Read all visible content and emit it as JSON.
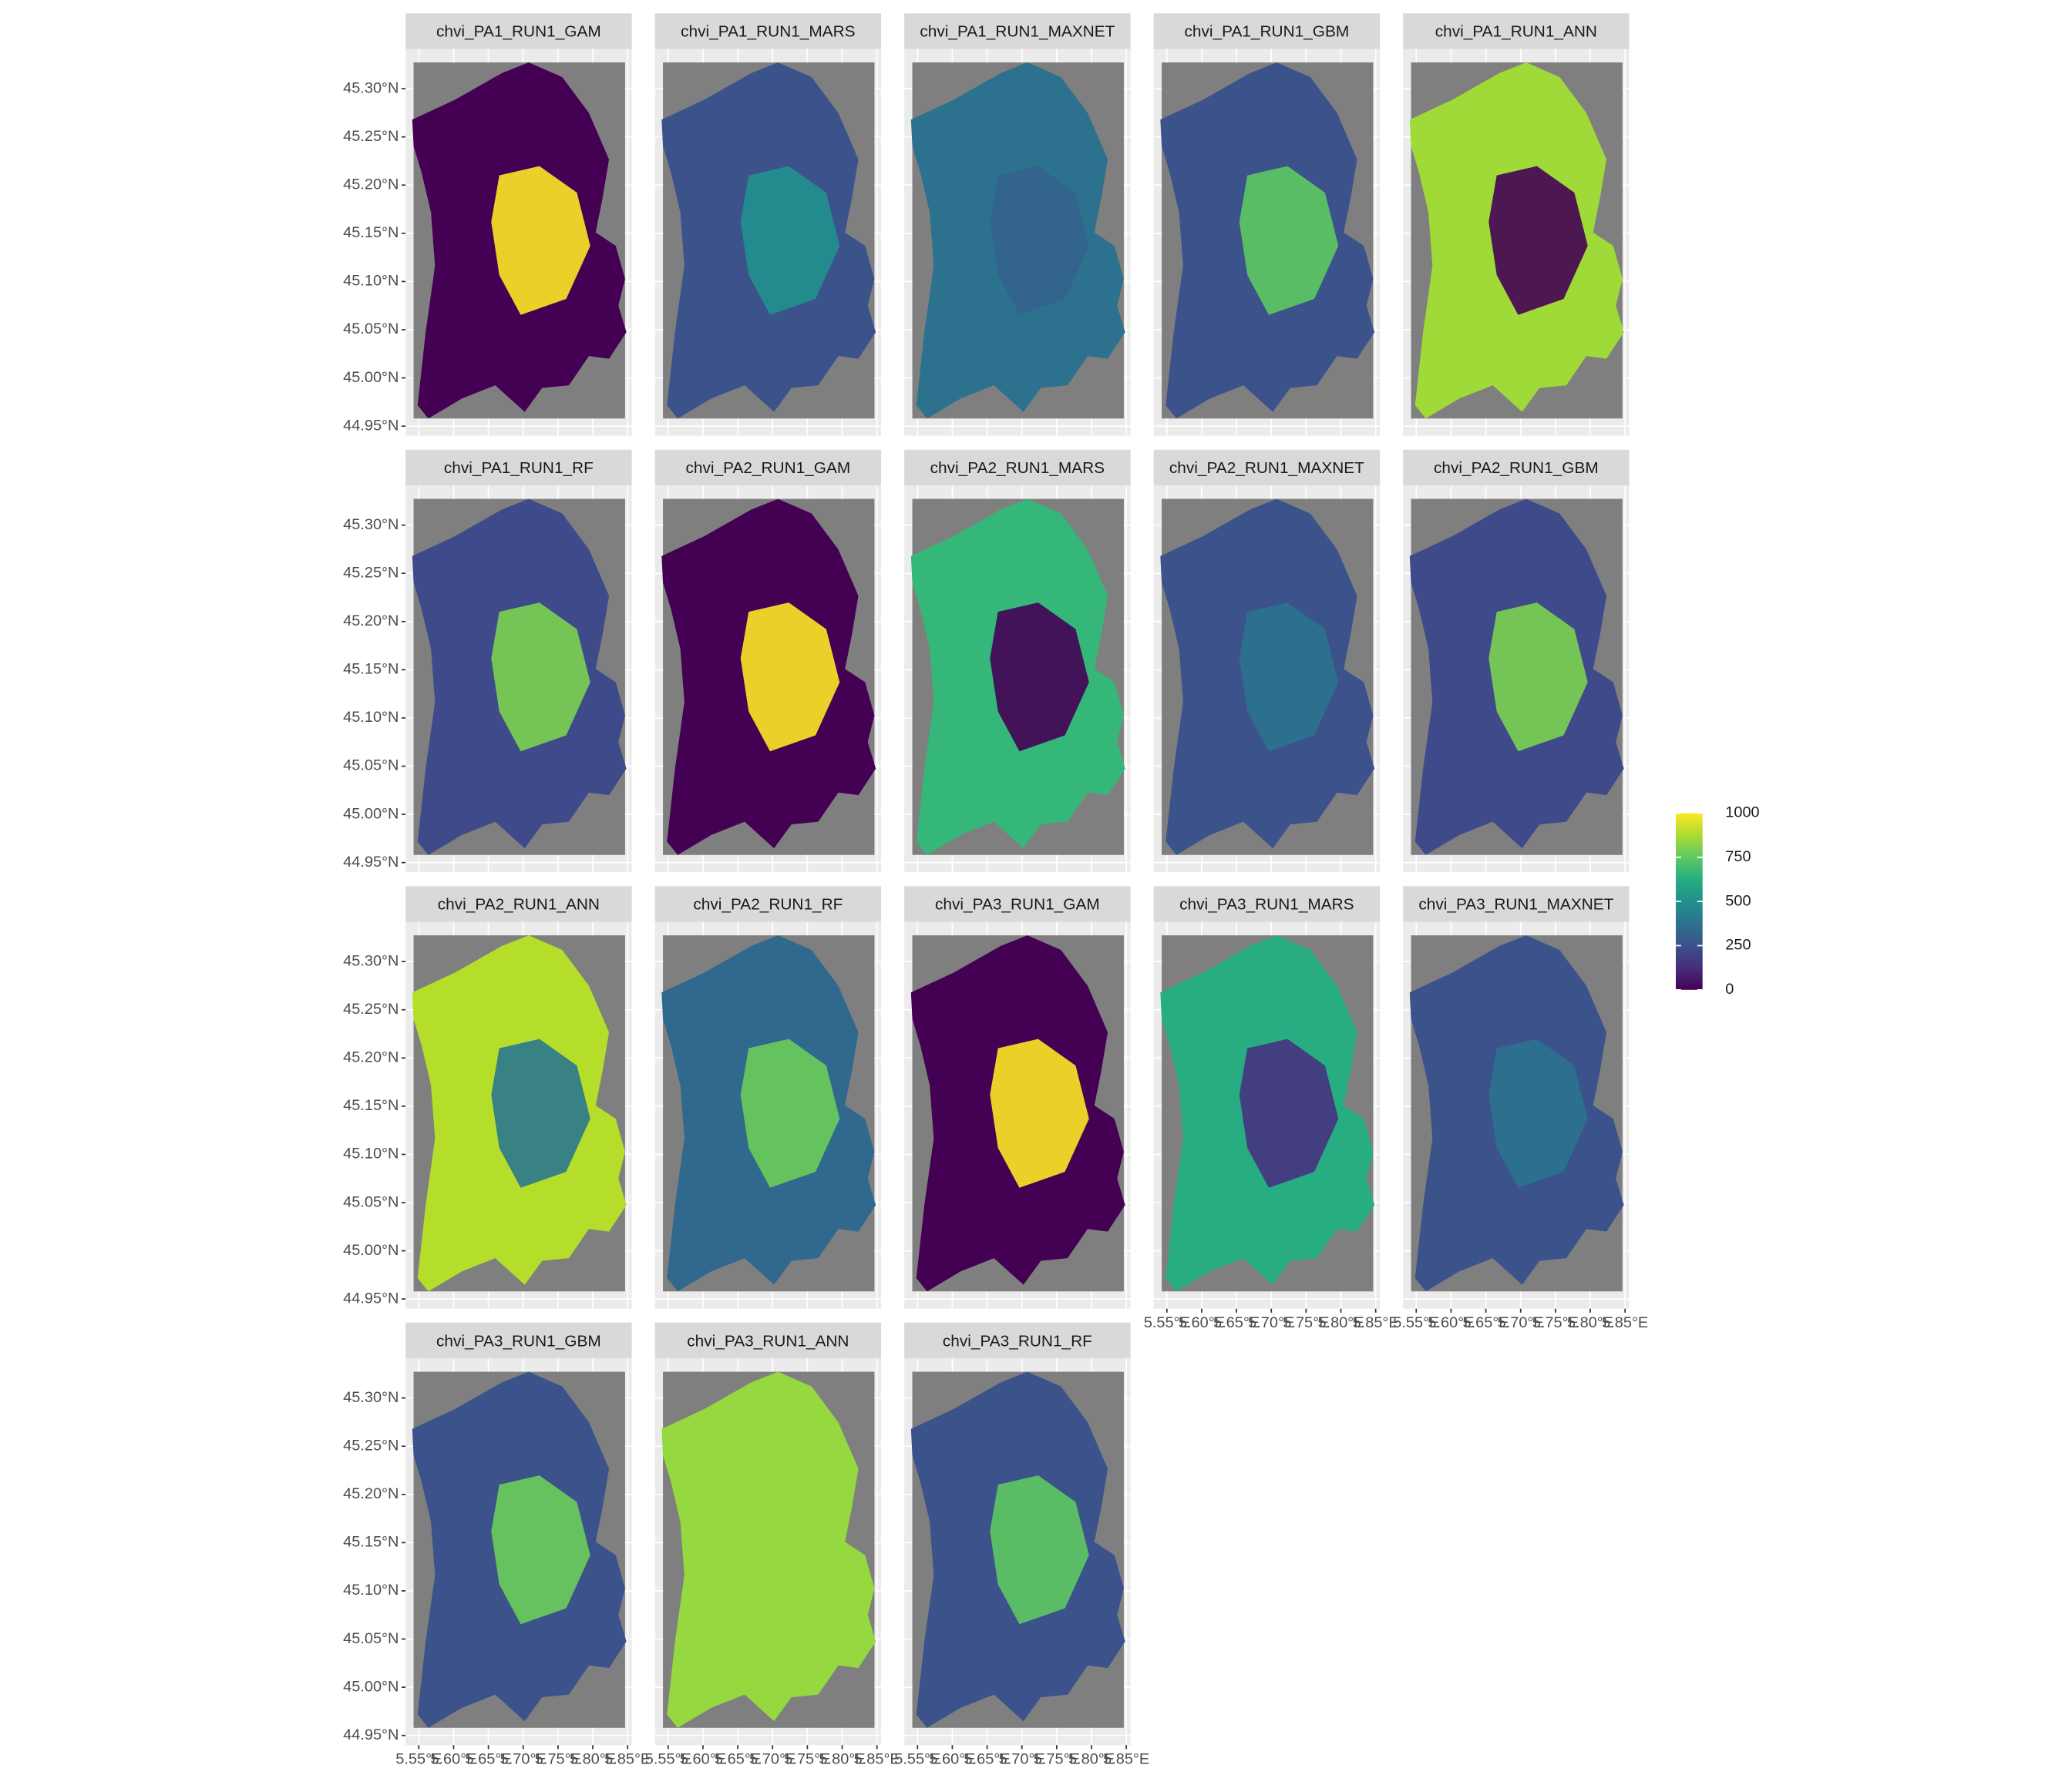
{
  "chart_data": {
    "type": "facet-raster-map",
    "panels": [
      {
        "title": "chvi_PA1_RUN1_GAM",
        "color": "#440154",
        "accent": "#fde725"
      },
      {
        "title": "chvi_PA1_RUN1_MARS",
        "color": "#3b528b",
        "accent": "#21908d"
      },
      {
        "title": "chvi_PA1_RUN1_MAXNET",
        "color": "#2c728e",
        "accent": "#33638d"
      },
      {
        "title": "chvi_PA1_RUN1_GBM",
        "color": "#3b528b",
        "accent": "#5ec962"
      },
      {
        "title": "chvi_PA1_RUN1_ANN",
        "color": "#a0da39",
        "accent": "#440154"
      },
      {
        "title": "chvi_PA1_RUN1_RF",
        "color": "#3e4a89",
        "accent": "#7ad151"
      },
      {
        "title": "chvi_PA2_RUN1_GAM",
        "color": "#440154",
        "accent": "#fde725"
      },
      {
        "title": "chvi_PA2_RUN1_MARS",
        "color": "#35b779",
        "accent": "#440154"
      },
      {
        "title": "chvi_PA2_RUN1_MAXNET",
        "color": "#3b528b",
        "accent": "#2c728e"
      },
      {
        "title": "chvi_PA2_RUN1_GBM",
        "color": "#3e4a89",
        "accent": "#7ad151"
      },
      {
        "title": "chvi_PA2_RUN1_ANN",
        "color": "#b5de2b",
        "accent": "#2a788e"
      },
      {
        "title": "chvi_PA2_RUN1_RF",
        "color": "#31688e",
        "accent": "#6ccd5a"
      },
      {
        "title": "chvi_PA3_RUN1_GAM",
        "color": "#440154",
        "accent": "#fde725"
      },
      {
        "title": "chvi_PA3_RUN1_MARS",
        "color": "#27ad81",
        "accent": "#46327e"
      },
      {
        "title": "chvi_PA3_RUN1_MAXNET",
        "color": "#3b528b",
        "accent": "#2c728e"
      },
      {
        "title": "chvi_PA3_RUN1_GBM",
        "color": "#3b528b",
        "accent": "#6ccd5a"
      },
      {
        "title": "chvi_PA3_RUN1_ANN",
        "color": "#95d840",
        "accent": "#95d840"
      },
      {
        "title": "chvi_PA3_RUN1_RF",
        "color": "#3b528b",
        "accent": "#5ec962"
      }
    ],
    "xlim": [
      5.531,
      5.856
    ],
    "ylim": [
      44.94,
      45.341
    ],
    "xticks": [
      {
        "value": 5.55,
        "label": "5.55°E"
      },
      {
        "value": 5.6,
        "label": "5.60°E"
      },
      {
        "value": 5.65,
        "label": "5.65°E"
      },
      {
        "value": 5.7,
        "label": "5.70°E"
      },
      {
        "value": 5.75,
        "label": "5.75°E"
      },
      {
        "value": 5.8,
        "label": "5.80°E"
      },
      {
        "value": 5.85,
        "label": "5.85°E"
      }
    ],
    "yticks": [
      {
        "value": 44.95,
        "label": "44.95°N"
      },
      {
        "value": 45,
        "label": "45.00°N"
      },
      {
        "value": 45.05,
        "label": "45.05°N"
      },
      {
        "value": 45.1,
        "label": "45.10°N"
      },
      {
        "value": 45.15,
        "label": "45.15°N"
      },
      {
        "value": 45.2,
        "label": "45.20°N"
      },
      {
        "value": 45.25,
        "label": "45.25°N"
      },
      {
        "value": 45.3,
        "label": "45.30°N"
      }
    ],
    "grid": true,
    "na_color": "#7f7f7f",
    "legend": {
      "lim": [
        0,
        1000
      ],
      "ticks": [
        0,
        250,
        500,
        750,
        1000
      ],
      "colors": [
        "#440154",
        "#472d7b",
        "#3b528b",
        "#2c728e",
        "#21908d",
        "#27ad81",
        "#5ec962",
        "#aadc32",
        "#fde725"
      ]
    }
  }
}
